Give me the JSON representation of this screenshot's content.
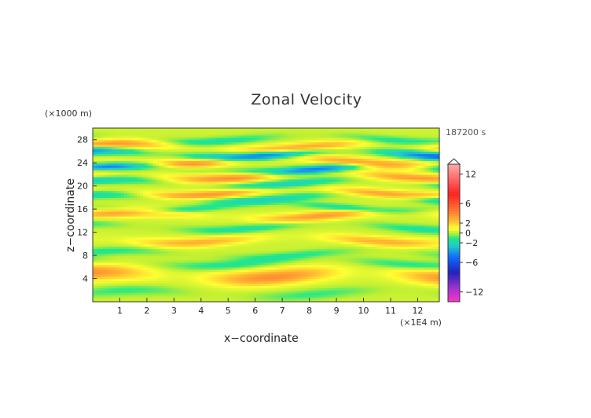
{
  "chart_data": {
    "type": "heatmap",
    "title": "Zonal Velocity",
    "xlabel": "x−coordinate",
    "ylabel": "z−coordinate",
    "x_unit_label": "(×1E4 m)",
    "y_unit_label": "(×1000 m)",
    "time_label": "187200 s",
    "xlim": [
      0,
      12.8
    ],
    "ylim": [
      0,
      30
    ],
    "x_ticks": [
      1,
      2,
      3,
      4,
      5,
      6,
      7,
      8,
      9,
      10,
      11,
      12
    ],
    "y_ticks": [
      4,
      8,
      12,
      16,
      20,
      24,
      28
    ],
    "grid": false,
    "colorbar": {
      "ticks": [
        "12",
        "6",
        "2",
        "0",
        "−2",
        "−6",
        "−12"
      ],
      "tick_values": [
        12,
        6,
        2,
        0,
        -2,
        -6,
        -12
      ],
      "range": [
        -14,
        14
      ],
      "colors": [
        {
          "v": -14,
          "c": "#ff33cc"
        },
        {
          "v": -11,
          "c": "#9933cc"
        },
        {
          "v": -8,
          "c": "#2222bb"
        },
        {
          "v": -5,
          "c": "#1166ff"
        },
        {
          "v": -2.5,
          "c": "#22cccc"
        },
        {
          "v": -1,
          "c": "#22e888"
        },
        {
          "v": 0,
          "c": "#bbee33"
        },
        {
          "v": 1,
          "c": "#ffff33"
        },
        {
          "v": 2.5,
          "c": "#ffbb33"
        },
        {
          "v": 4,
          "c": "#ff8833"
        },
        {
          "v": 8,
          "c": "#ff2222"
        },
        {
          "v": 11,
          "c": "#ff6666"
        },
        {
          "v": 14,
          "c": "#ffaaaa"
        }
      ]
    },
    "bands": [
      {
        "z": 1.5,
        "amp": -1.2,
        "width": 0.9,
        "phase": 0.3
      },
      {
        "z": 4.6,
        "amp": 3.6,
        "width": 1.3,
        "phase": 1.1
      },
      {
        "z": 6.8,
        "amp": -1.6,
        "width": 0.8,
        "phase": 2.0
      },
      {
        "z": 8.3,
        "amp": -1.4,
        "width": 0.7,
        "phase": 0.7
      },
      {
        "z": 10.8,
        "amp": 2.6,
        "width": 0.8,
        "phase": 2.6
      },
      {
        "z": 13.0,
        "amp": -1.8,
        "width": 0.7,
        "phase": 1.7
      },
      {
        "z": 15.0,
        "amp": 3.2,
        "width": 0.8,
        "phase": 0.2
      },
      {
        "z": 16.4,
        "amp": -2.2,
        "width": 0.6,
        "phase": 3.1
      },
      {
        "z": 18.0,
        "amp": -2.4,
        "width": 0.7,
        "phase": 1.2
      },
      {
        "z": 19.0,
        "amp": 3.4,
        "width": 0.7,
        "phase": 2.4
      },
      {
        "z": 20.6,
        "amp": -2.6,
        "width": 0.7,
        "phase": 0.9
      },
      {
        "z": 21.8,
        "amp": 3.6,
        "width": 0.8,
        "phase": 1.9
      },
      {
        "z": 23.0,
        "amp": -5.0,
        "width": 0.7,
        "phase": 0.4
      },
      {
        "z": 24.3,
        "amp": 3.8,
        "width": 0.8,
        "phase": 2.9
      },
      {
        "z": 25.6,
        "amp": -5.5,
        "width": 0.7,
        "phase": 1.4
      },
      {
        "z": 26.8,
        "amp": 3.4,
        "width": 0.8,
        "phase": 0.6
      },
      {
        "z": 28.2,
        "amp": -1.8,
        "width": 0.7,
        "phase": 2.2
      }
    ]
  }
}
